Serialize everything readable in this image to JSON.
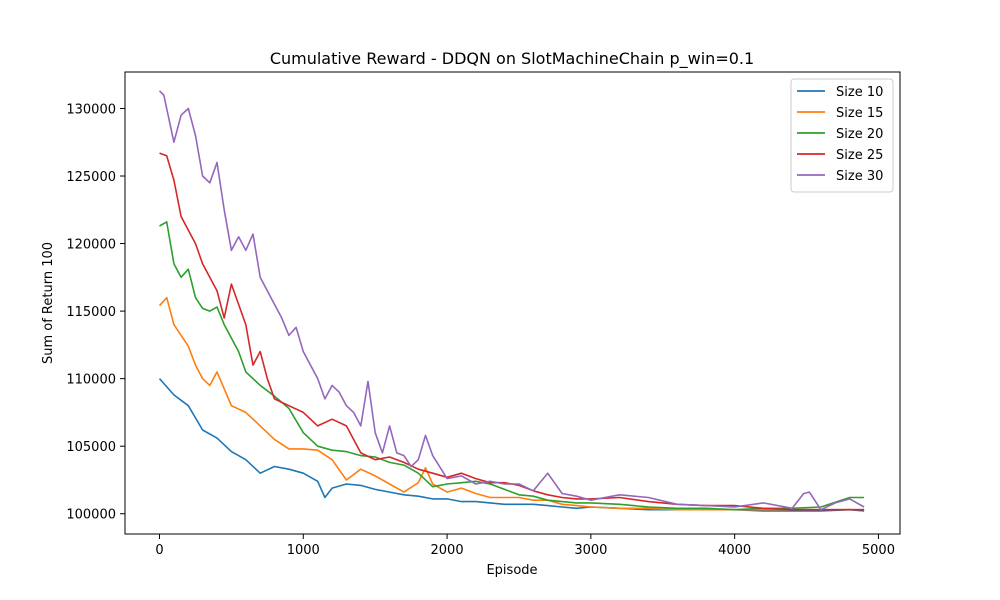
{
  "chart_data": {
    "type": "line",
    "title": "Cumulative Reward - DDQN on SlotMachineChain p_win=0.1",
    "xlabel": "Episode",
    "ylabel": "Sum of Return 100",
    "xlim": [
      -240,
      5150
    ],
    "ylim": [
      98500,
      132700
    ],
    "xticks": [
      0,
      1000,
      2000,
      3000,
      4000,
      5000
    ],
    "xtick_labels": [
      "0",
      "1000",
      "2000",
      "3000",
      "4000",
      "5000"
    ],
    "yticks": [
      100000,
      105000,
      110000,
      115000,
      120000,
      125000,
      130000
    ],
    "ytick_labels": [
      "100000",
      "105000",
      "110000",
      "115000",
      "120000",
      "125000",
      "130000"
    ],
    "grid": false,
    "legend_position": "upper right",
    "series": [
      {
        "name": "Size 10",
        "color": "#1f77b4",
        "x": [
          0,
          100,
          200,
          300,
          400,
          500,
          600,
          700,
          800,
          900,
          1000,
          1100,
          1150,
          1200,
          1300,
          1400,
          1500,
          1600,
          1700,
          1800,
          1900,
          2000,
          2100,
          2200,
          2300,
          2400,
          2500,
          2600,
          2700,
          2800,
          2900,
          3000,
          3200,
          3400,
          3600,
          3800,
          4000,
          4200,
          4400,
          4600,
          4800,
          4900
        ],
        "y": [
          110000,
          108800,
          108000,
          106200,
          105600,
          104600,
          104000,
          103000,
          103500,
          103300,
          103000,
          102400,
          101200,
          101900,
          102200,
          102100,
          101800,
          101600,
          101400,
          101300,
          101100,
          101100,
          100900,
          100900,
          100800,
          100700,
          100700,
          100700,
          100600,
          100500,
          100400,
          100500,
          100400,
          100300,
          100300,
          100300,
          100300,
          100200,
          100200,
          100200,
          100300,
          100200
        ]
      },
      {
        "name": "Size 15",
        "color": "#ff7f0e",
        "x": [
          0,
          50,
          100,
          200,
          250,
          300,
          350,
          400,
          500,
          600,
          700,
          800,
          900,
          1000,
          1100,
          1200,
          1300,
          1400,
          1500,
          1600,
          1700,
          1800,
          1850,
          1900,
          2000,
          2100,
          2200,
          2300,
          2400,
          2500,
          2600,
          2700,
          2800,
          2900,
          3000,
          3200,
          3400,
          3600,
          3800,
          4000,
          4200,
          4400,
          4600,
          4800,
          4900
        ],
        "y": [
          115400,
          116000,
          114000,
          112400,
          111000,
          110000,
          109500,
          110500,
          108000,
          107500,
          106500,
          105500,
          104800,
          104800,
          104700,
          104000,
          102500,
          103300,
          102800,
          102200,
          101600,
          102300,
          103400,
          102200,
          101600,
          101900,
          101500,
          101200,
          101200,
          101200,
          101000,
          101000,
          100700,
          100600,
          100500,
          100400,
          100400,
          100300,
          100300,
          100300,
          100300,
          100300,
          100300,
          100300,
          100300
        ]
      },
      {
        "name": "Size 20",
        "color": "#2ca02c",
        "x": [
          0,
          50,
          100,
          150,
          200,
          250,
          300,
          350,
          400,
          450,
          500,
          550,
          600,
          700,
          800,
          900,
          1000,
          1100,
          1200,
          1300,
          1400,
          1500,
          1600,
          1700,
          1800,
          1900,
          2000,
          2100,
          2200,
          2300,
          2400,
          2500,
          2600,
          2700,
          2800,
          2900,
          3000,
          3200,
          3400,
          3600,
          3800,
          4000,
          4200,
          4400,
          4600,
          4800,
          4900
        ],
        "y": [
          121300,
          121600,
          118500,
          117500,
          118100,
          116000,
          115200,
          115000,
          115300,
          114000,
          113000,
          112000,
          110500,
          109500,
          108700,
          107800,
          106000,
          105000,
          104700,
          104600,
          104300,
          104200,
          103800,
          103600,
          103000,
          102000,
          102200,
          102300,
          102400,
          102200,
          101800,
          101400,
          101300,
          101000,
          100900,
          100800,
          100800,
          100700,
          100500,
          100400,
          100400,
          100300,
          100400,
          100400,
          100500,
          101200,
          101200
        ]
      },
      {
        "name": "Size 25",
        "color": "#d62728",
        "x": [
          0,
          50,
          100,
          150,
          200,
          250,
          300,
          350,
          400,
          450,
          500,
          550,
          600,
          650,
          700,
          750,
          800,
          900,
          1000,
          1100,
          1200,
          1300,
          1350,
          1400,
          1500,
          1600,
          1700,
          1800,
          1900,
          2000,
          2100,
          2200,
          2300,
          2400,
          2500,
          2600,
          2700,
          2800,
          2900,
          3000,
          3200,
          3400,
          3600,
          3800,
          4000,
          4200,
          4400,
          4600,
          4800,
          4900
        ],
        "y": [
          126700,
          126500,
          124700,
          122000,
          121000,
          120000,
          118500,
          117500,
          116500,
          114500,
          117000,
          115500,
          114000,
          111000,
          112000,
          110000,
          108500,
          108000,
          107500,
          106500,
          107000,
          106500,
          105500,
          104500,
          104000,
          104200,
          103800,
          103300,
          103000,
          102700,
          103000,
          102600,
          102300,
          102300,
          102100,
          101700,
          101400,
          101200,
          101100,
          101100,
          101200,
          100900,
          100700,
          100600,
          100600,
          100400,
          100300,
          100300,
          100300,
          100300
        ]
      },
      {
        "name": "Size 30",
        "color": "#9467bd",
        "x": [
          0,
          30,
          100,
          150,
          200,
          250,
          300,
          350,
          400,
          450,
          500,
          550,
          600,
          650,
          700,
          750,
          800,
          850,
          900,
          950,
          1000,
          1050,
          1100,
          1150,
          1200,
          1250,
          1300,
          1350,
          1400,
          1450,
          1500,
          1550,
          1600,
          1650,
          1700,
          1750,
          1800,
          1850,
          1900,
          2000,
          2100,
          2200,
          2300,
          2400,
          2500,
          2600,
          2700,
          2800,
          2900,
          3000,
          3200,
          3400,
          3600,
          3800,
          4000,
          4200,
          4400,
          4480,
          4520,
          4600,
          4700,
          4800,
          4900
        ],
        "y": [
          131300,
          131000,
          127500,
          129500,
          130000,
          128000,
          125000,
          124500,
          126000,
          122500,
          119500,
          120500,
          119500,
          120700,
          117500,
          116500,
          115500,
          114500,
          113200,
          113800,
          112000,
          111000,
          110000,
          108500,
          109500,
          109000,
          108000,
          107500,
          106500,
          109800,
          106000,
          104500,
          106500,
          104500,
          104300,
          103500,
          104000,
          105800,
          104300,
          102600,
          102800,
          102200,
          102400,
          102200,
          102200,
          101700,
          103000,
          101500,
          101300,
          101000,
          101400,
          101200,
          100700,
          100600,
          100500,
          100800,
          100400,
          101500,
          101600,
          100300,
          100800,
          101100,
          100500
        ]
      }
    ]
  }
}
